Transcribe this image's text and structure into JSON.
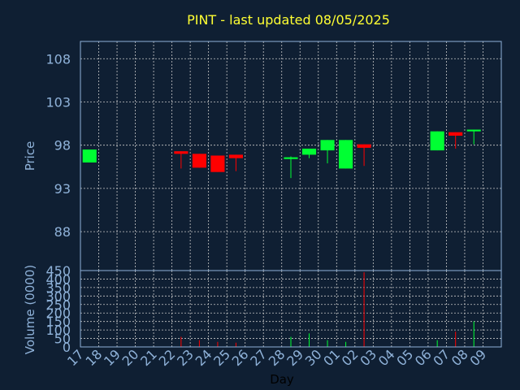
{
  "chart_data": {
    "type": "candlestick",
    "title": "PINT - last updated 08/05/2025",
    "xlabel": "Day",
    "ylabel": "Price",
    "volume_label": "Volume (0000)",
    "price_ylim": [
      83.5,
      110
    ],
    "price_yticks": [
      88,
      93,
      98,
      103,
      108
    ],
    "volume_ylim": [
      0,
      450
    ],
    "volume_yticks": [
      0,
      50,
      100,
      150,
      200,
      250,
      300,
      350,
      400,
      450
    ],
    "x_labels": [
      "17",
      "18",
      "19",
      "20",
      "21",
      "22",
      "23",
      "24",
      "25",
      "26",
      "27",
      "28",
      "29",
      "30",
      "01",
      "02",
      "03",
      "04",
      "05",
      "06",
      "07",
      "08",
      "09"
    ],
    "up_color": "#00ff33",
    "down_color": "#ff0000",
    "candles": [
      {
        "x": "17",
        "open": 96.0,
        "high": 97.5,
        "low": 96.0,
        "close": 97.5,
        "volume": 2
      },
      {
        "x": "22",
        "open": 97.3,
        "high": 97.3,
        "low": 95.3,
        "close": 97.0,
        "volume": 60
      },
      {
        "x": "23",
        "open": 97.0,
        "high": 97.0,
        "low": 95.4,
        "close": 95.4,
        "volume": 40
      },
      {
        "x": "24",
        "open": 96.8,
        "high": 96.8,
        "low": 94.9,
        "close": 94.9,
        "volume": 30
      },
      {
        "x": "25",
        "open": 96.9,
        "high": 96.9,
        "low": 95.0,
        "close": 96.5,
        "volume": 25
      },
      {
        "x": "28",
        "open": 96.4,
        "high": 96.7,
        "low": 94.2,
        "close": 96.6,
        "volume": 60
      },
      {
        "x": "29",
        "open": 96.9,
        "high": 97.6,
        "low": 96.5,
        "close": 97.6,
        "volume": 80
      },
      {
        "x": "30",
        "open": 97.4,
        "high": 98.6,
        "low": 95.9,
        "close": 98.6,
        "volume": 40
      },
      {
        "x": "01",
        "open": 95.3,
        "high": 98.6,
        "low": 95.3,
        "close": 98.6,
        "volume": 30
      },
      {
        "x": "02",
        "open": 98.1,
        "high": 98.1,
        "low": 95.6,
        "close": 97.7,
        "volume": 440
      },
      {
        "x": "06",
        "open": 97.4,
        "high": 99.6,
        "low": 97.4,
        "close": 99.6,
        "volume": 40
      },
      {
        "x": "07",
        "open": 99.5,
        "high": 99.5,
        "low": 97.6,
        "close": 99.1,
        "volume": 90
      },
      {
        "x": "08",
        "open": 99.6,
        "high": 99.8,
        "low": 98.1,
        "close": 99.8,
        "volume": 150
      }
    ]
  }
}
